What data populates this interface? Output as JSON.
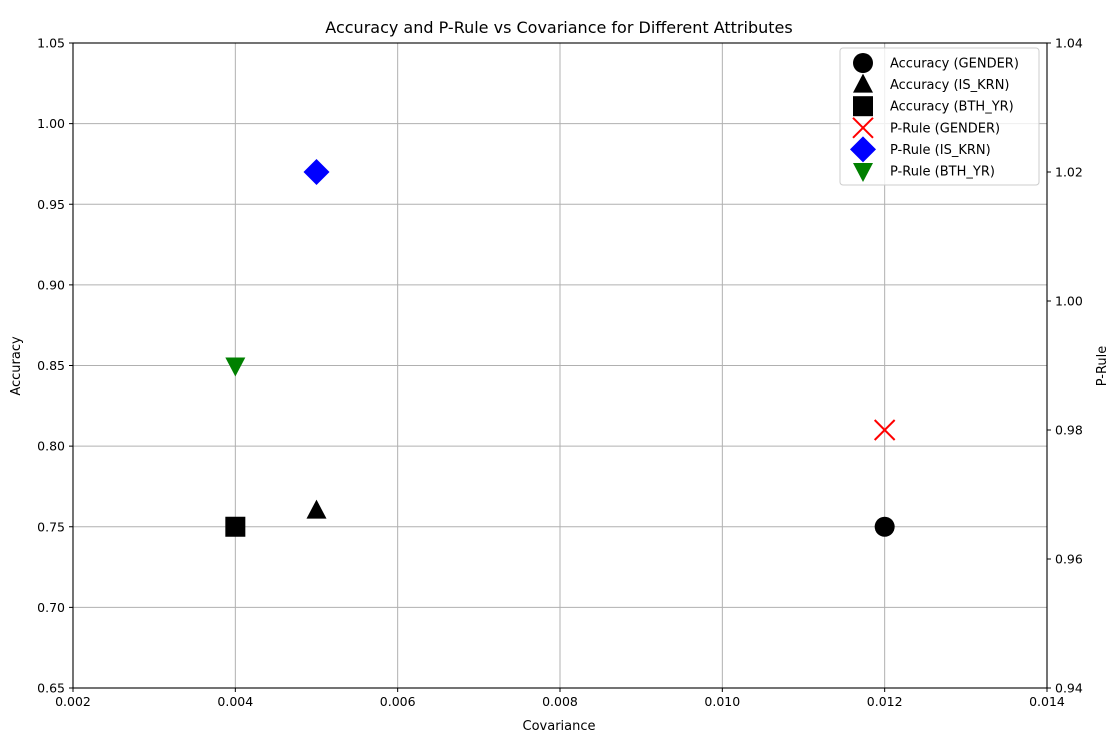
{
  "chart_data": {
    "type": "scatter",
    "title": "Accuracy and P-Rule vs Covariance for Different Attributes",
    "xlabel": "Covariance",
    "ylabel": "Accuracy",
    "y2label": "P-Rule",
    "xlim": [
      0.002,
      0.014
    ],
    "ylim": [
      0.65,
      1.05
    ],
    "y2lim": [
      0.94,
      1.04
    ],
    "xticks": [
      "0.002",
      "0.004",
      "0.006",
      "0.008",
      "0.010",
      "0.012",
      "0.014"
    ],
    "yticks": [
      "0.65",
      "0.70",
      "0.75",
      "0.80",
      "0.85",
      "0.90",
      "0.95",
      "1.00",
      "1.05"
    ],
    "y2ticks": [
      "0.94",
      "0.96",
      "0.98",
      "1.00",
      "1.02",
      "1.04"
    ],
    "grid": true,
    "legend_position": "top-right",
    "series": [
      {
        "name": "Accuracy (GENDER)",
        "axis": "left",
        "marker": "circle",
        "color": "#000000",
        "points": [
          [
            0.012,
            0.75
          ]
        ]
      },
      {
        "name": "Accuracy (IS_KRN)",
        "axis": "left",
        "marker": "triangle-up",
        "color": "#000000",
        "points": [
          [
            0.005,
            0.76
          ]
        ]
      },
      {
        "name": "Accuracy (BTH_YR)",
        "axis": "left",
        "marker": "square",
        "color": "#000000",
        "points": [
          [
            0.004,
            0.75
          ]
        ]
      },
      {
        "name": "P-Rule (GENDER)",
        "axis": "right",
        "marker": "x",
        "color": "#ff0000",
        "points": [
          [
            0.012,
            0.98
          ]
        ]
      },
      {
        "name": "P-Rule (IS_KRN)",
        "axis": "right",
        "marker": "diamond",
        "color": "#0000ff",
        "points": [
          [
            0.005,
            1.02
          ]
        ]
      },
      {
        "name": "P-Rule (BTH_YR)",
        "axis": "right",
        "marker": "triangle-down",
        "color": "#008000",
        "points": [
          [
            0.004,
            0.99
          ]
        ]
      }
    ]
  }
}
